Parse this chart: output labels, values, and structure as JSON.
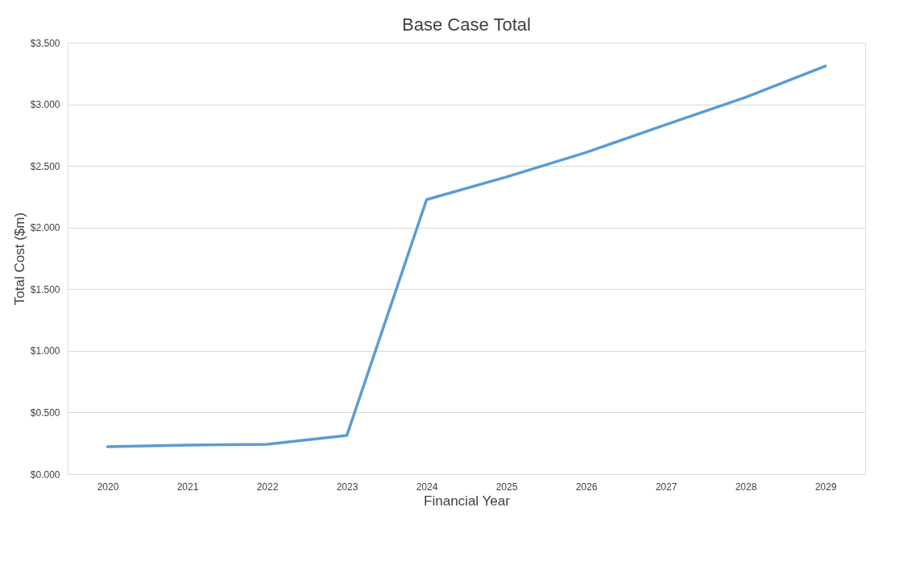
{
  "chart_data": {
    "type": "line",
    "title": "Base Case Total",
    "xlabel": "Financial Year",
    "ylabel": "Total Cost ($m)",
    "categories": [
      "2020",
      "2021",
      "2022",
      "2023",
      "2024",
      "2025",
      "2026",
      "2027",
      "2028",
      "2029"
    ],
    "series": [
      {
        "color": "#5b9bd5",
        "values": [
          0.222,
          0.235,
          0.242,
          0.313,
          2.227,
          2.41,
          2.61,
          2.835,
          3.057,
          3.31
        ]
      }
    ],
    "ylim": [
      0,
      3.5
    ],
    "yticks": [
      {
        "value": 0,
        "label": "$0.000"
      },
      {
        "value": 0.5,
        "label": "$0.500"
      },
      {
        "value": 1,
        "label": "$1.000"
      },
      {
        "value": 1.5,
        "label": "$1.500"
      },
      {
        "value": 2,
        "label": "$2.000"
      },
      {
        "value": 2.5,
        "label": "$2.500"
      },
      {
        "value": 3,
        "label": "$3.000"
      },
      {
        "value": 3.5,
        "label": "$3.500"
      }
    ],
    "grid": "y",
    "legend": false,
    "marker": "none",
    "line_style": "solid"
  }
}
